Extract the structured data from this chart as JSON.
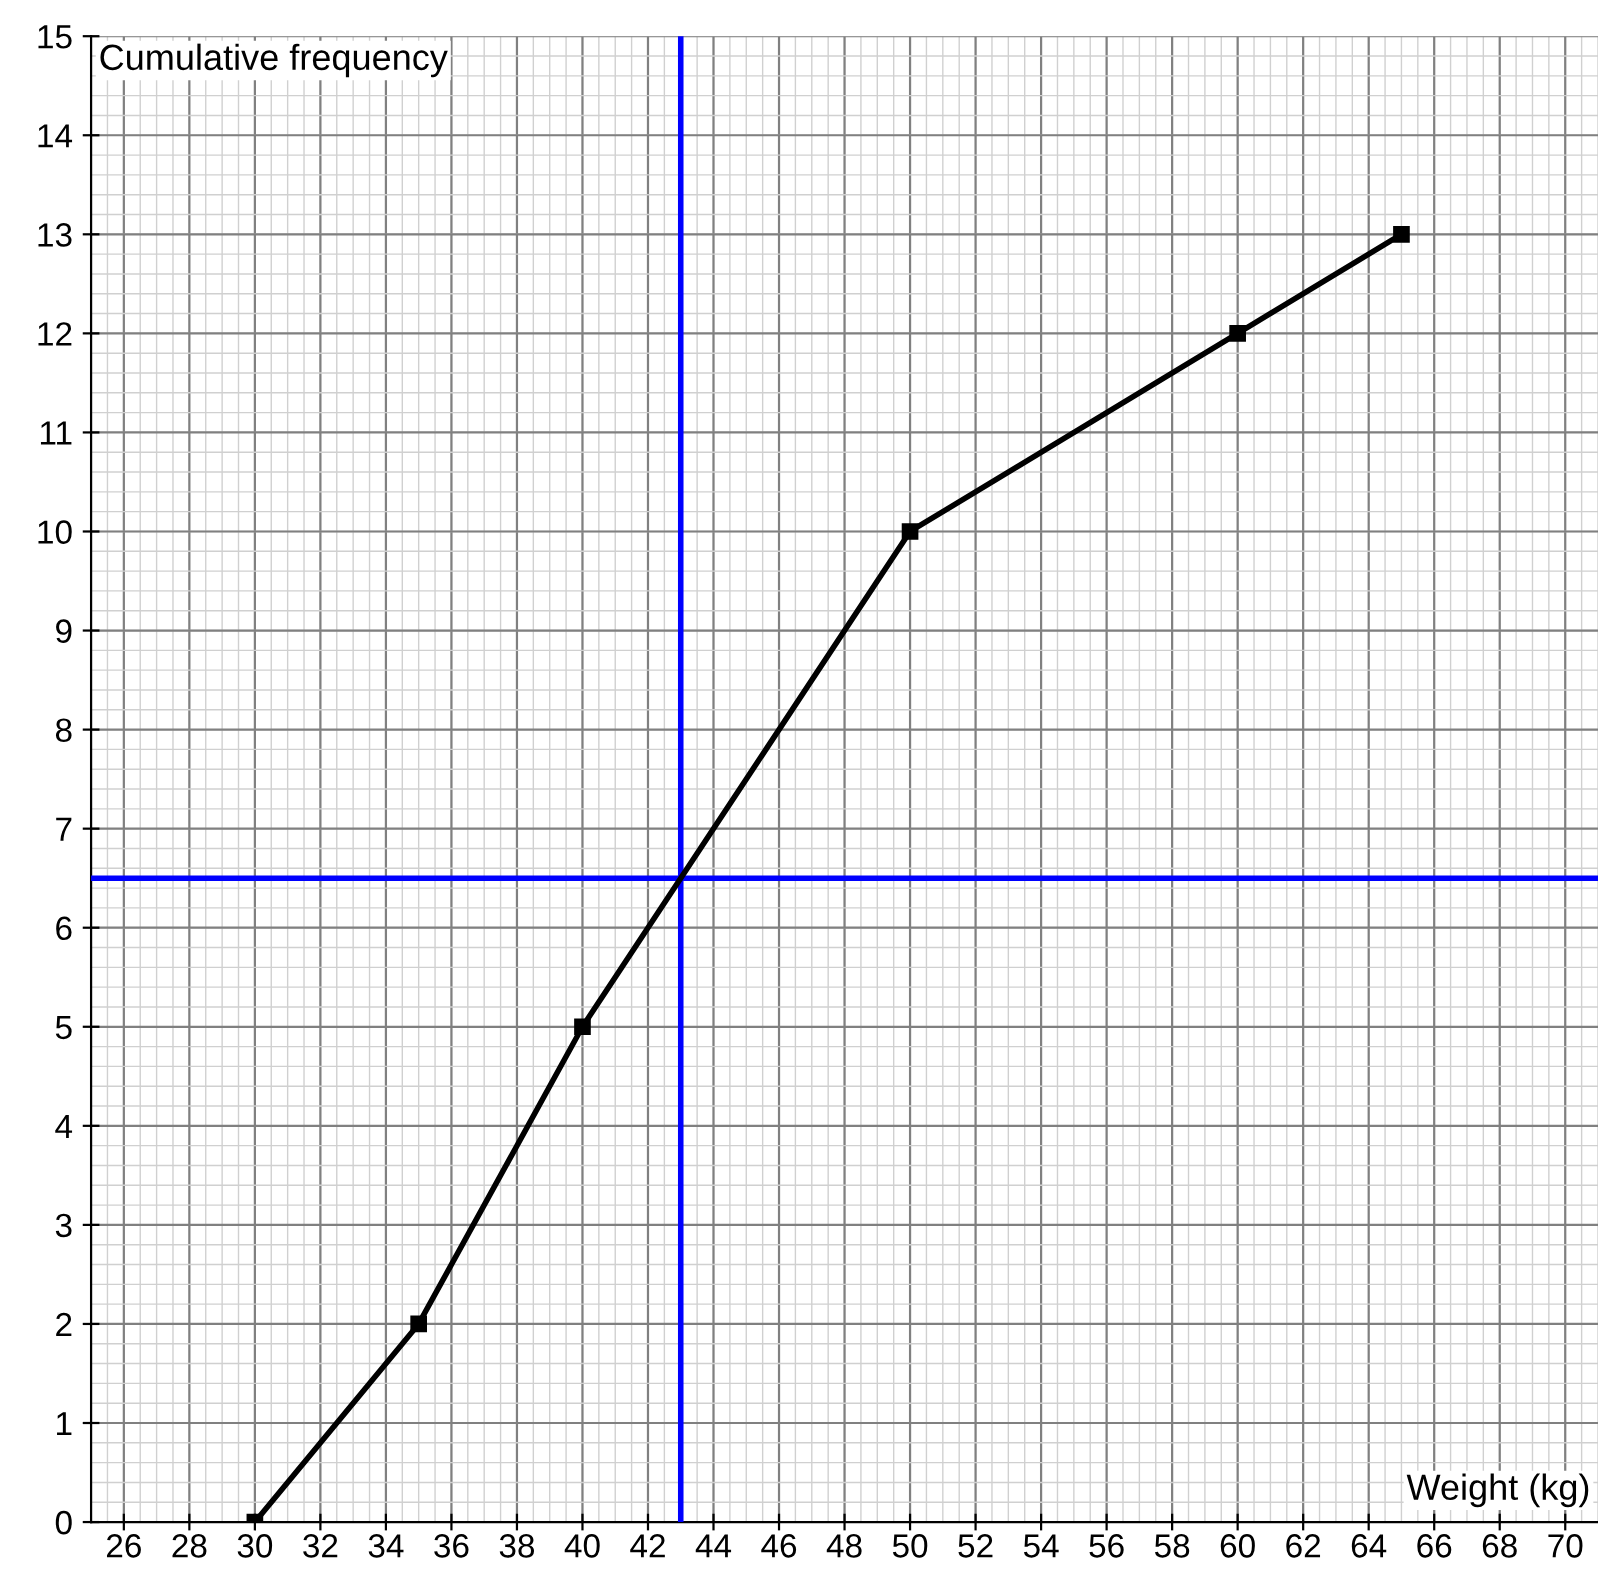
{
  "chart_data": {
    "type": "line",
    "xlabel": "Weight (kg)",
    "ylabel": "Cumulative frequency",
    "x": [
      30,
      35,
      40,
      50,
      60,
      65
    ],
    "series": [
      {
        "color": "#000000",
        "values": [
          0,
          2,
          5,
          10,
          12,
          13
        ]
      }
    ],
    "marker": "square",
    "line_style": "solid",
    "xlim": [
      25,
      71
    ],
    "ylim": [
      0,
      15
    ],
    "xticks": [
      26,
      28,
      30,
      32,
      34,
      36,
      38,
      40,
      42,
      44,
      46,
      48,
      50,
      52,
      54,
      56,
      58,
      60,
      62,
      64,
      66,
      68,
      70
    ],
    "yticks": [
      0,
      1,
      2,
      3,
      4,
      5,
      6,
      7,
      8,
      9,
      10,
      11,
      12,
      13,
      14,
      15
    ],
    "grid": true,
    "ref_lines": [
      {
        "axis": "x",
        "value": 43,
        "color": "#0000ff"
      },
      {
        "axis": "y",
        "value": 6.5,
        "color": "#0000ff"
      }
    ]
  }
}
